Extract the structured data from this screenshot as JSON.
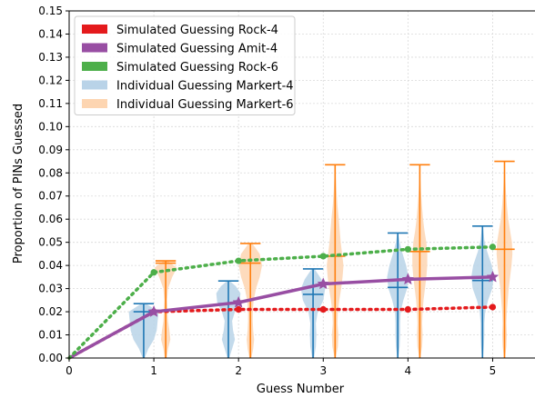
{
  "chart_data": {
    "type": "line",
    "xlabel": "Guess Number",
    "ylabel": "Proportion of PINs Guessed",
    "xlim": [
      0,
      5.5
    ],
    "ylim": [
      0,
      0.15
    ],
    "x_ticks": [
      "0",
      "1",
      "2",
      "3",
      "4",
      "5"
    ],
    "y_ticks": [
      "0.00",
      "0.01",
      "0.02",
      "0.03",
      "0.04",
      "0.05",
      "0.06",
      "0.07",
      "0.08",
      "0.09",
      "0.10",
      "0.11",
      "0.12",
      "0.13",
      "0.14",
      "0.15"
    ],
    "grid": true,
    "legend_position": "top-left",
    "colors": {
      "rock4": "#e41a1c",
      "amit4": "#984ea3",
      "rock6": "#4daf4a",
      "markert4": "#1f77b4",
      "markert4_fill": "#b9d3e8",
      "markert6": "#ff7f0e",
      "markert6_fill": "#fdd5b1"
    },
    "series": [
      {
        "name": "Simulated Guessing Rock-4",
        "style": "dotted",
        "marker": "circle",
        "x": [
          0,
          1,
          2,
          3,
          4,
          5
        ],
        "y": [
          0,
          0.02,
          0.021,
          0.021,
          0.021,
          0.022
        ]
      },
      {
        "name": "Simulated Guessing Amit-4",
        "style": "solid",
        "marker": "star",
        "x": [
          0,
          1,
          2,
          3,
          4,
          5
        ],
        "y": [
          0,
          0.02,
          0.024,
          0.032,
          0.034,
          0.035
        ]
      },
      {
        "name": "Simulated Guessing Rock-6",
        "style": "dotted",
        "marker": "circle",
        "x": [
          0,
          1,
          2,
          3,
          4,
          5
        ],
        "y": [
          0,
          0.037,
          0.042,
          0.044,
          0.047,
          0.048
        ]
      }
    ],
    "violins": [
      {
        "name": "Individual Guessing Markert-4",
        "offset": -0.12,
        "groups": [
          {
            "x": 1,
            "min": 0.0,
            "max": 0.0235,
            "median": 0.02,
            "profile": [
              [
                0.0,
                0.02
              ],
              [
                0.004,
                0.1
              ],
              [
                0.008,
                0.22
              ],
              [
                0.012,
                0.28
              ],
              [
                0.016,
                0.3
              ],
              [
                0.02,
                0.32
              ],
              [
                0.0235,
                0.05
              ]
            ]
          },
          {
            "x": 2,
            "min": 0.0,
            "max": 0.0333,
            "median": 0.0235,
            "profile": [
              [
                0.0,
                0.02
              ],
              [
                0.004,
                0.08
              ],
              [
                0.008,
                0.14
              ],
              [
                0.012,
                0.1
              ],
              [
                0.016,
                0.08
              ],
              [
                0.02,
                0.14
              ],
              [
                0.024,
                0.24
              ],
              [
                0.028,
                0.26
              ],
              [
                0.031,
                0.16
              ],
              [
                0.0333,
                0.03
              ]
            ]
          },
          {
            "x": 3,
            "min": 0.0,
            "max": 0.0385,
            "median": 0.0275,
            "profile": [
              [
                0.0,
                0.02
              ],
              [
                0.005,
                0.06
              ],
              [
                0.01,
                0.07
              ],
              [
                0.015,
                0.06
              ],
              [
                0.02,
                0.1
              ],
              [
                0.025,
                0.22
              ],
              [
                0.03,
                0.26
              ],
              [
                0.034,
                0.18
              ],
              [
                0.0385,
                0.03
              ]
            ]
          },
          {
            "x": 4,
            "min": 0.0,
            "max": 0.054,
            "median": 0.0305,
            "profile": [
              [
                0.0,
                0.01
              ],
              [
                0.005,
                0.04
              ],
              [
                0.01,
                0.05
              ],
              [
                0.015,
                0.05
              ],
              [
                0.02,
                0.06
              ],
              [
                0.025,
                0.12
              ],
              [
                0.03,
                0.2
              ],
              [
                0.035,
                0.23
              ],
              [
                0.04,
                0.18
              ],
              [
                0.046,
                0.09
              ],
              [
                0.05,
                0.04
              ],
              [
                0.054,
                0.01
              ]
            ]
          },
          {
            "x": 5,
            "min": 0.0,
            "max": 0.057,
            "median": 0.0335,
            "profile": [
              [
                0.0,
                0.01
              ],
              [
                0.005,
                0.03
              ],
              [
                0.01,
                0.04
              ],
              [
                0.015,
                0.04
              ],
              [
                0.02,
                0.06
              ],
              [
                0.025,
                0.12
              ],
              [
                0.03,
                0.21
              ],
              [
                0.035,
                0.24
              ],
              [
                0.04,
                0.2
              ],
              [
                0.046,
                0.1
              ],
              [
                0.051,
                0.04
              ],
              [
                0.057,
                0.01
              ]
            ]
          }
        ]
      },
      {
        "name": "Individual Guessing Markert-6",
        "offset": 0.14,
        "groups": [
          {
            "x": 1,
            "min": 0.0,
            "max": 0.042,
            "median": 0.041,
            "profile": [
              [
                0.0,
                0.02
              ],
              [
                0.004,
                0.05
              ],
              [
                0.008,
                0.1
              ],
              [
                0.012,
                0.08
              ],
              [
                0.016,
                0.05
              ],
              [
                0.02,
                0.04
              ],
              [
                0.025,
                0.03
              ],
              [
                0.03,
                0.05
              ],
              [
                0.035,
                0.14
              ],
              [
                0.039,
                0.24
              ],
              [
                0.042,
                0.04
              ]
            ]
          },
          {
            "x": 2,
            "min": 0.0,
            "max": 0.0495,
            "median": 0.041,
            "profile": [
              [
                0.0,
                0.02
              ],
              [
                0.004,
                0.06
              ],
              [
                0.008,
                0.08
              ],
              [
                0.012,
                0.06
              ],
              [
                0.016,
                0.05
              ],
              [
                0.02,
                0.05
              ],
              [
                0.025,
                0.07
              ],
              [
                0.03,
                0.12
              ],
              [
                0.035,
                0.2
              ],
              [
                0.04,
                0.25
              ],
              [
                0.045,
                0.2
              ],
              [
                0.0495,
                0.04
              ]
            ]
          },
          {
            "x": 3,
            "min": 0.0,
            "max": 0.0835,
            "median": 0.044,
            "profile": [
              [
                0.0,
                0.01
              ],
              [
                0.005,
                0.06
              ],
              [
                0.01,
                0.07
              ],
              [
                0.015,
                0.05
              ],
              [
                0.02,
                0.06
              ],
              [
                0.025,
                0.09
              ],
              [
                0.03,
                0.13
              ],
              [
                0.035,
                0.16
              ],
              [
                0.04,
                0.18
              ],
              [
                0.045,
                0.15
              ],
              [
                0.05,
                0.12
              ],
              [
                0.055,
                0.1
              ],
              [
                0.06,
                0.08
              ],
              [
                0.066,
                0.05
              ],
              [
                0.072,
                0.03
              ],
              [
                0.078,
                0.015
              ],
              [
                0.0835,
                0.005
              ]
            ]
          },
          {
            "x": 4,
            "min": 0.0,
            "max": 0.0835,
            "median": 0.046,
            "profile": [
              [
                0.0,
                0.01
              ],
              [
                0.005,
                0.05
              ],
              [
                0.01,
                0.06
              ],
              [
                0.015,
                0.05
              ],
              [
                0.02,
                0.06
              ],
              [
                0.025,
                0.08
              ],
              [
                0.03,
                0.11
              ],
              [
                0.035,
                0.14
              ],
              [
                0.04,
                0.16
              ],
              [
                0.045,
                0.16
              ],
              [
                0.05,
                0.14
              ],
              [
                0.055,
                0.1
              ],
              [
                0.06,
                0.07
              ],
              [
                0.066,
                0.045
              ],
              [
                0.072,
                0.025
              ],
              [
                0.078,
                0.01
              ],
              [
                0.0835,
                0.004
              ]
            ]
          },
          {
            "x": 5,
            "min": 0.0,
            "max": 0.085,
            "median": 0.047,
            "profile": [
              [
                0.0,
                0.01
              ],
              [
                0.005,
                0.04
              ],
              [
                0.01,
                0.05
              ],
              [
                0.015,
                0.04
              ],
              [
                0.02,
                0.05
              ],
              [
                0.025,
                0.07
              ],
              [
                0.03,
                0.09
              ],
              [
                0.035,
                0.12
              ],
              [
                0.04,
                0.15
              ],
              [
                0.045,
                0.17
              ],
              [
                0.05,
                0.16
              ],
              [
                0.055,
                0.12
              ],
              [
                0.06,
                0.08
              ],
              [
                0.066,
                0.05
              ],
              [
                0.072,
                0.03
              ],
              [
                0.078,
                0.015
              ],
              [
                0.085,
                0.004
              ]
            ]
          }
        ]
      }
    ],
    "legend": [
      {
        "label": "Simulated Guessing Rock-4",
        "color": "#e41a1c"
      },
      {
        "label": "Simulated Guessing Amit-4",
        "color": "#984ea3"
      },
      {
        "label": "Simulated Guessing Rock-6",
        "color": "#4daf4a"
      },
      {
        "label": "Individual Guessing Markert-4",
        "color": "#b9d3e8"
      },
      {
        "label": "Individual Guessing Markert-6",
        "color": "#fdd5b1"
      }
    ]
  }
}
